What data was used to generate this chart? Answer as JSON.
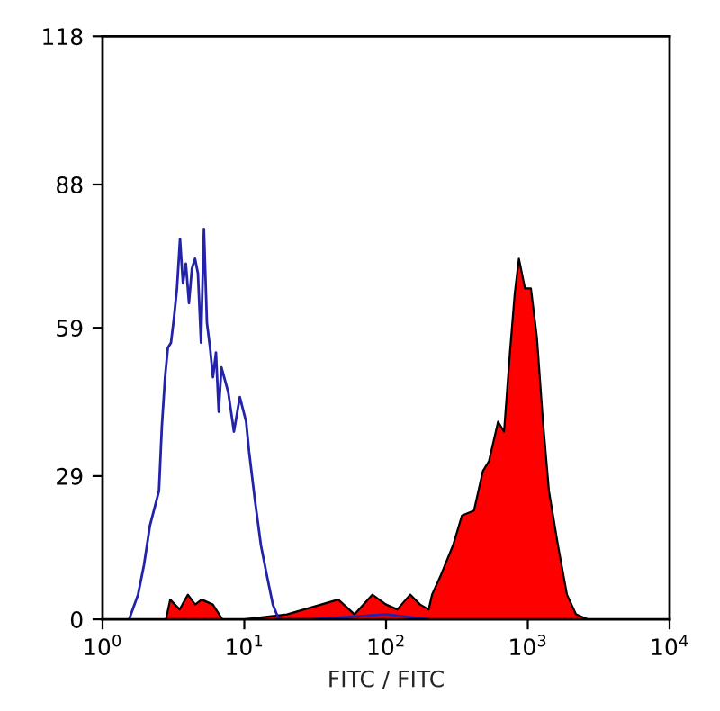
{
  "chart_data": {
    "type": "line",
    "xlabel": "FITC / FITC",
    "log": "x",
    "xlim": [
      1,
      10000
    ],
    "xticks": [
      {
        "value": 1,
        "label": "10$^{0}$"
      },
      {
        "value": 10,
        "label": "10$^{1}$"
      },
      {
        "value": 100,
        "label": "10$^{2}$"
      },
      {
        "value": 1000,
        "label": "10$^{3}$"
      },
      {
        "value": 10000,
        "label": "10$^{4}$"
      }
    ],
    "ylim": [
      0,
      118
    ],
    "yticks": [
      0,
      29,
      59,
      88,
      118
    ],
    "grid": false,
    "series": [
      {
        "type": "area",
        "color": "#ff0000",
        "x": [
          1.5,
          2.8,
          3,
          3.5,
          4,
          4.5,
          5,
          6,
          7,
          10,
          20,
          46,
          60,
          80,
          100,
          120,
          148,
          174,
          200,
          211,
          244,
          297,
          343,
          417,
          482,
          532,
          617,
          680,
          748,
          809,
          865,
          955,
          1052,
          1160,
          1280,
          1410,
          1632,
          1890,
          2190,
          2640,
          3000
        ],
        "values": [
          0,
          0,
          4,
          2,
          5,
          3,
          4,
          3,
          0,
          0,
          1,
          4,
          1,
          5,
          3,
          2,
          5,
          3,
          2,
          5,
          9,
          15,
          21,
          22,
          30,
          32,
          40,
          38,
          54,
          66,
          73,
          67,
          67,
          57,
          40,
          26,
          15,
          5,
          1,
          0,
          0
        ]
      },
      {
        "color": "#2222aa",
        "x": [
          1.54,
          1.78,
          1.96,
          2.16,
          2.5,
          2.62,
          2.76,
          2.89,
          3.04,
          3.19,
          3.35,
          3.52,
          3.69,
          3.87,
          4.07,
          4.27,
          4.49,
          4.71,
          4.95,
          5.19,
          5.45,
          5.73,
          6.01,
          6.31,
          6.6,
          6.9,
          7.7,
          8.45,
          9.3,
          10.3,
          10.8,
          11.9,
          13.1,
          14.4,
          15.9,
          17.5,
          30,
          100,
          200
        ],
        "values": [
          0,
          5,
          11,
          19,
          26,
          39,
          49,
          55,
          56,
          61,
          67,
          77,
          68,
          72,
          64,
          71,
          73,
          70,
          56,
          79,
          60,
          55,
          49,
          54,
          42,
          51,
          46,
          38,
          45,
          40,
          34,
          24,
          15,
          9,
          3,
          0,
          0,
          1,
          0
        ]
      }
    ]
  }
}
